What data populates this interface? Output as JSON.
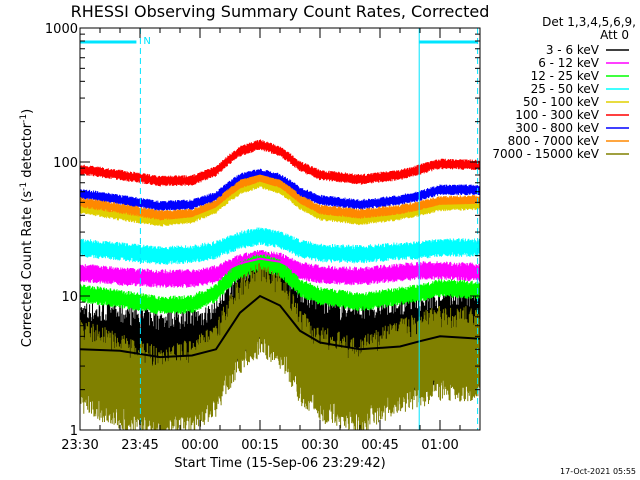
{
  "chart_data": {
    "type": "line",
    "title": "RHESSI Observing Summary Count Rates, Corrected",
    "xlabel": "Start Time (15-Sep-06 23:29:42)",
    "ylabel_parts": [
      "Corrected Count Rate (s",
      "-1",
      " detector",
      "-1",
      ")"
    ],
    "yscale": "log",
    "ylim": [
      1,
      1000
    ],
    "y_ticks": [
      {
        "value": 1,
        "label": "1"
      },
      {
        "value": 10,
        "label": "10"
      },
      {
        "value": 100,
        "label": "100"
      },
      {
        "value": 1000,
        "label": "1000"
      }
    ],
    "x_unit": "minutes since 23:30",
    "xlim": [
      0,
      100
    ],
    "x_ticks": [
      {
        "value": 0,
        "label": "23:30"
      },
      {
        "value": 15,
        "label": "23:45"
      },
      {
        "value": 30,
        "label": "00:00"
      },
      {
        "value": 45,
        "label": "00:15"
      },
      {
        "value": 60,
        "label": "00:30"
      },
      {
        "value": 75,
        "label": "00:45"
      },
      {
        "value": 90,
        "label": "01:00"
      }
    ],
    "legend_header": [
      "Det 1,3,4,5,6,9,",
      "Att 0"
    ],
    "legend_position": "top-right, outside plot",
    "series": [
      {
        "name": "3 - 6 keV",
        "color": "#000000",
        "points": [
          [
            0,
            4.0
          ],
          [
            10,
            3.9
          ],
          [
            20,
            3.5
          ],
          [
            28,
            3.6
          ],
          [
            34,
            4.0
          ],
          [
            40,
            7.5
          ],
          [
            45,
            10.0
          ],
          [
            50,
            8.5
          ],
          [
            55,
            5.5
          ],
          [
            60,
            4.5
          ],
          [
            70,
            4.0
          ],
          [
            80,
            4.2
          ],
          [
            85,
            4.6
          ],
          [
            90,
            5.0
          ],
          [
            100,
            4.8
          ]
        ]
      },
      {
        "name": "6 - 12 keV",
        "color": "#ff00ff",
        "points": [
          [
            0,
            15.0
          ],
          [
            10,
            14.0
          ],
          [
            20,
            13.5
          ],
          [
            28,
            13.5
          ],
          [
            34,
            14.5
          ],
          [
            40,
            17.5
          ],
          [
            45,
            19.0
          ],
          [
            50,
            18.0
          ],
          [
            55,
            15.5
          ],
          [
            60,
            14.5
          ],
          [
            70,
            14.0
          ],
          [
            80,
            15.0
          ],
          [
            85,
            15.5
          ],
          [
            90,
            15.5
          ],
          [
            100,
            15.0
          ]
        ]
      },
      {
        "name": "12 - 25 keV",
        "color": "#00ff00",
        "points": [
          [
            0,
            10.5
          ],
          [
            10,
            9.5
          ],
          [
            20,
            8.5
          ],
          [
            28,
            8.7
          ],
          [
            34,
            10.5
          ],
          [
            40,
            15.5
          ],
          [
            45,
            18.0
          ],
          [
            50,
            16.0
          ],
          [
            55,
            11.5
          ],
          [
            60,
            10.0
          ],
          [
            70,
            9.0
          ],
          [
            80,
            10.0
          ],
          [
            85,
            10.5
          ],
          [
            90,
            11.5
          ],
          [
            100,
            11.0
          ]
        ]
      },
      {
        "name": "25 - 50 keV",
        "color": "#00ffff",
        "points": [
          [
            0,
            23.0
          ],
          [
            10,
            21.5
          ],
          [
            20,
            20.0
          ],
          [
            28,
            20.5
          ],
          [
            34,
            22.0
          ],
          [
            40,
            26.0
          ],
          [
            45,
            28.0
          ],
          [
            50,
            26.5
          ],
          [
            55,
            22.5
          ],
          [
            60,
            21.0
          ],
          [
            70,
            20.5
          ],
          [
            80,
            21.5
          ],
          [
            85,
            22.0
          ],
          [
            90,
            23.0
          ],
          [
            100,
            23.0
          ]
        ]
      },
      {
        "name": "50 - 100 keV",
        "color": "#e0d000",
        "points": [
          [
            0,
            45.0
          ],
          [
            10,
            40.0
          ],
          [
            20,
            36.0
          ],
          [
            28,
            38.0
          ],
          [
            34,
            45.0
          ],
          [
            40,
            62.0
          ],
          [
            45,
            70.0
          ],
          [
            50,
            63.0
          ],
          [
            55,
            48.0
          ],
          [
            60,
            40.0
          ],
          [
            70,
            37.0
          ],
          [
            80,
            40.0
          ],
          [
            85,
            43.0
          ],
          [
            90,
            47.0
          ],
          [
            100,
            48.0
          ]
        ]
      },
      {
        "name": "100 - 300 keV",
        "color": "#ff0000",
        "points": [
          [
            0,
            88.0
          ],
          [
            10,
            80.0
          ],
          [
            20,
            72.0
          ],
          [
            28,
            73.0
          ],
          [
            34,
            85.0
          ],
          [
            40,
            120.0
          ],
          [
            45,
            135.0
          ],
          [
            50,
            120.0
          ],
          [
            55,
            93.0
          ],
          [
            60,
            80.0
          ],
          [
            70,
            74.0
          ],
          [
            80,
            80.0
          ],
          [
            85,
            88.0
          ],
          [
            90,
            97.0
          ],
          [
            100,
            95.0
          ]
        ]
      },
      {
        "name": "300 - 800 keV",
        "color": "#0000ff",
        "points": [
          [
            0,
            58.0
          ],
          [
            10,
            52.0
          ],
          [
            20,
            47.0
          ],
          [
            28,
            48.0
          ],
          [
            34,
            55.0
          ],
          [
            40,
            75.0
          ],
          [
            45,
            82.0
          ],
          [
            50,
            75.0
          ],
          [
            55,
            60.0
          ],
          [
            60,
            52.0
          ],
          [
            70,
            48.0
          ],
          [
            80,
            52.0
          ],
          [
            85,
            56.0
          ],
          [
            90,
            62.0
          ],
          [
            100,
            62.0
          ]
        ]
      },
      {
        "name": "800 - 7000 keV",
        "color": "#ff8800",
        "points": [
          [
            0,
            50.0
          ],
          [
            10,
            45.0
          ],
          [
            20,
            40.0
          ],
          [
            28,
            41.0
          ],
          [
            34,
            48.0
          ],
          [
            40,
            68.0
          ],
          [
            45,
            76.0
          ],
          [
            50,
            69.0
          ],
          [
            55,
            52.0
          ],
          [
            60,
            44.0
          ],
          [
            70,
            41.0
          ],
          [
            80,
            44.0
          ],
          [
            85,
            47.0
          ],
          [
            90,
            51.0
          ],
          [
            100,
            52.0
          ]
        ]
      },
      {
        "name": "7000 - 15000 keV",
        "color": "#808000",
        "points": [
          [
            0,
            3.0
          ],
          [
            10,
            2.3
          ],
          [
            20,
            1.8
          ],
          [
            28,
            2.1
          ],
          [
            34,
            2.7
          ],
          [
            40,
            6.0
          ],
          [
            45,
            8.0
          ],
          [
            50,
            6.5
          ],
          [
            55,
            3.5
          ],
          [
            60,
            2.6
          ],
          [
            70,
            2.1
          ],
          [
            80,
            3.0
          ],
          [
            85,
            3.3
          ],
          [
            90,
            3.8
          ],
          [
            100,
            3.6
          ]
        ]
      }
    ],
    "annotations": [
      {
        "label": "N",
        "color": "#00e5ff"
      }
    ]
  },
  "footer": {
    "timestamp": "17-Oct-2021 05:55"
  }
}
